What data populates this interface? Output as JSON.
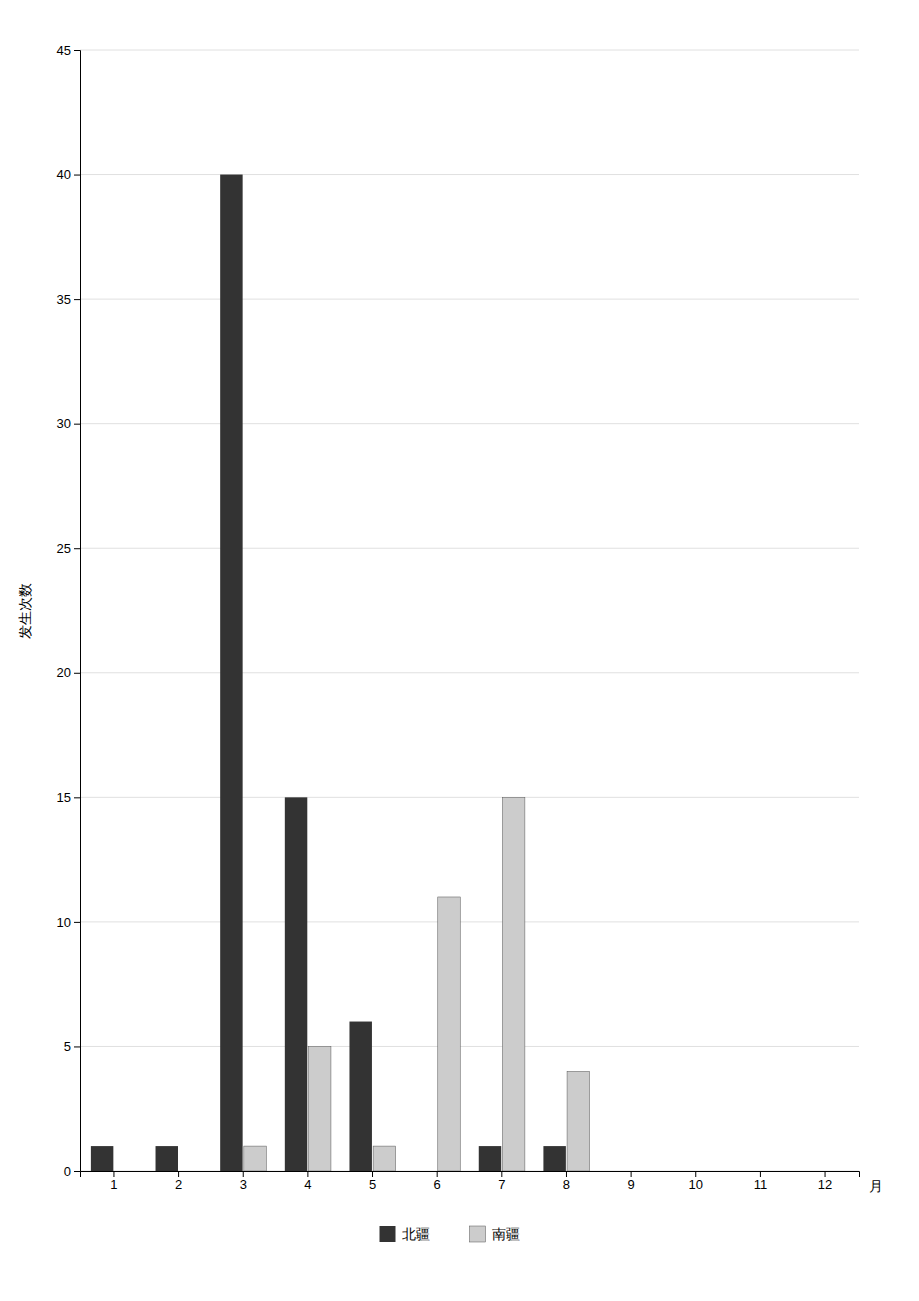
{
  "chart_data": {
    "type": "bar",
    "categories": [
      "1",
      "2",
      "3",
      "4",
      "5",
      "6",
      "7",
      "8",
      "9",
      "10",
      "11",
      "12"
    ],
    "series": [
      {
        "name": "北疆",
        "color": "#333333",
        "values": [
          1,
          1,
          40,
          15,
          6,
          0,
          1,
          1,
          0,
          0,
          0,
          0
        ]
      },
      {
        "name": "南疆",
        "color": "#cccccc",
        "values": [
          0,
          0,
          1,
          5,
          1,
          11,
          15,
          4,
          0,
          0,
          0,
          0
        ]
      }
    ],
    "xlabel": "月",
    "ylabel": "发生次数",
    "ylim": [
      0,
      45
    ],
    "yticks": [
      0,
      5,
      10,
      15,
      20,
      25,
      30,
      35,
      40,
      45
    ],
    "grid": true,
    "legend": "bottom"
  }
}
